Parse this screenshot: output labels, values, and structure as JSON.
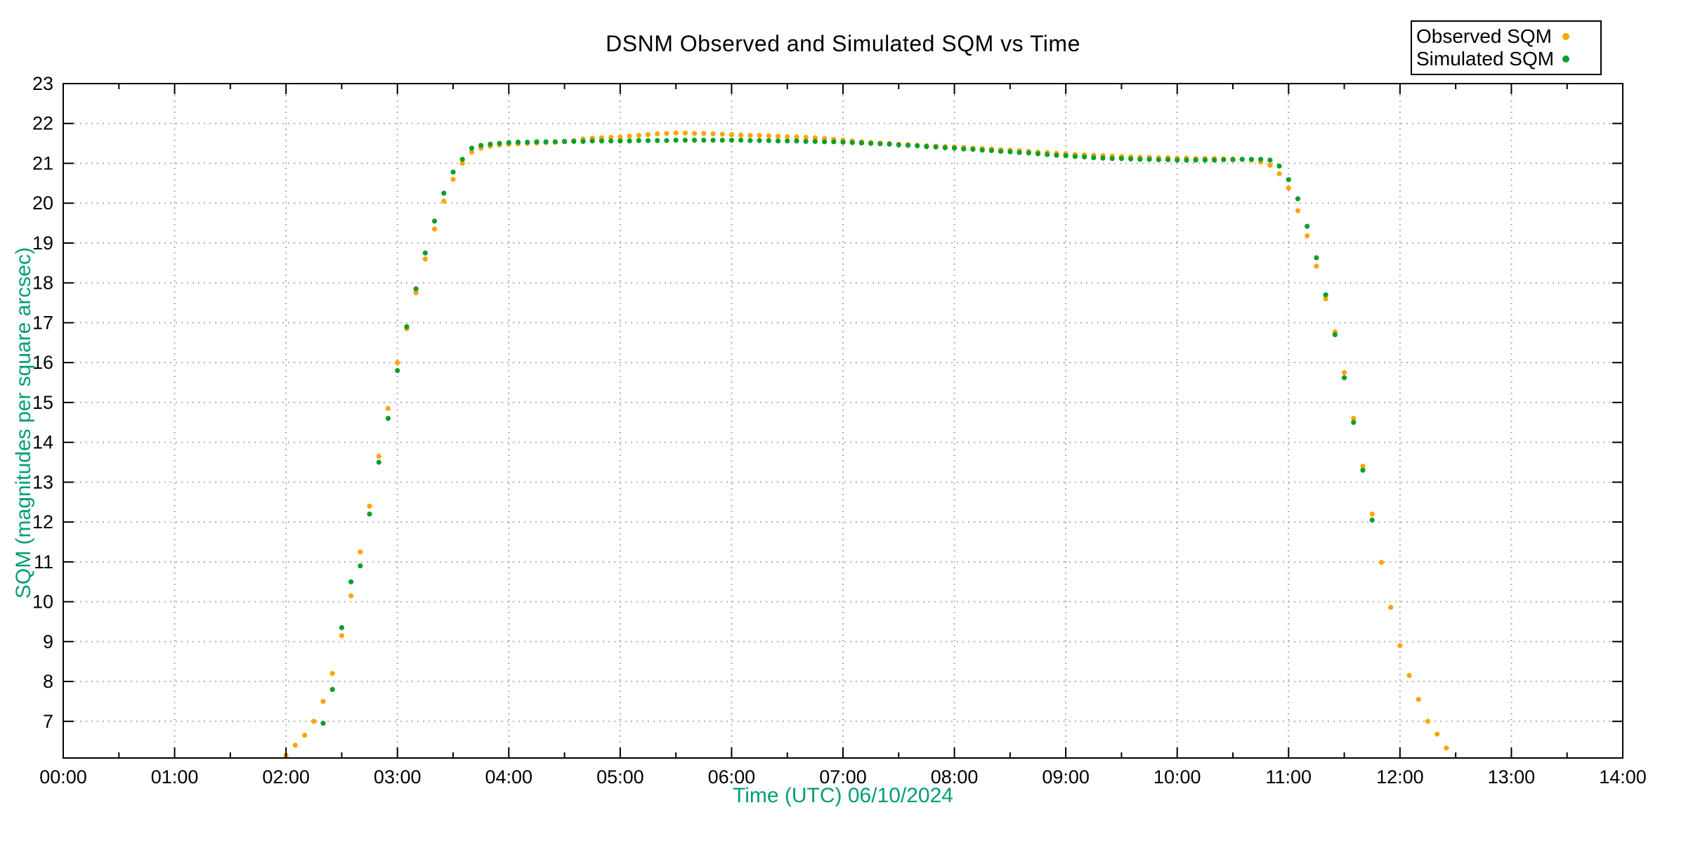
{
  "title": "DSNM Observed and Simulated SQM vs Time",
  "legend": {
    "position": "top-right",
    "items": [
      {
        "label": "Observed SQM",
        "color": "#ffa500"
      },
      {
        "label": "Simulated SQM",
        "color": "#0ba029"
      }
    ]
  },
  "axes": {
    "x_title": "Time (UTC)   06/10/2024",
    "y_title": "SQM (magnitudes per square arcsec)",
    "label_color": "#009e73",
    "grid_color": "#b0b0b0",
    "axis_color": "#000000"
  },
  "chart_data": {
    "type": "scatter",
    "title": "DSNM Observed and Simulated SQM vs Time",
    "xlabel": "Time (UTC)   06/10/2024",
    "ylabel": "SQM (magnitudes per square arcsec)",
    "grid": true,
    "legend_position": "top-right",
    "x_range_hours": [
      0,
      14
    ],
    "ylim": [
      6.08,
      23
    ],
    "x_tick_step_hours": 1,
    "x_minor_tick_step_hours": 0.5,
    "x_tick_labels": [
      "00:00",
      "01:00",
      "02:00",
      "03:00",
      "04:00",
      "05:00",
      "06:00",
      "07:00",
      "08:00",
      "09:00",
      "10:00",
      "11:00",
      "12:00",
      "13:00",
      "14:00"
    ],
    "y_ticks": [
      7,
      8,
      9,
      10,
      11,
      12,
      13,
      14,
      15,
      16,
      17,
      18,
      19,
      20,
      21,
      22,
      23
    ],
    "series": [
      {
        "name": "Observed SQM",
        "color": "#ffa500",
        "points": [
          [
            "02:00",
            6.15
          ],
          [
            "02:05",
            6.4
          ],
          [
            "02:10",
            6.65
          ],
          [
            "02:15",
            7.0
          ],
          [
            "02:20",
            7.5
          ],
          [
            "02:25",
            8.2
          ],
          [
            "02:30",
            9.15
          ],
          [
            "02:35",
            10.15
          ],
          [
            "02:40",
            11.25
          ],
          [
            "02:45",
            12.4
          ],
          [
            "02:50",
            13.65
          ],
          [
            "02:55",
            14.85
          ],
          [
            "03:00",
            16.0
          ],
          [
            "03:05",
            16.85
          ],
          [
            "03:10",
            17.75
          ],
          [
            "03:15",
            18.6
          ],
          [
            "03:20",
            19.35
          ],
          [
            "03:25",
            20.05
          ],
          [
            "03:30",
            20.6
          ],
          [
            "03:35",
            21.0
          ],
          [
            "03:40",
            21.28
          ],
          [
            "03:45",
            21.38
          ],
          [
            "03:50",
            21.43
          ],
          [
            "03:55",
            21.46
          ],
          [
            "04:00",
            21.48
          ],
          [
            "04:05",
            21.49
          ],
          [
            "04:10",
            21.5
          ],
          [
            "04:15",
            21.51
          ],
          [
            "04:20",
            21.52
          ],
          [
            "04:25",
            21.53
          ],
          [
            "04:30",
            21.54
          ],
          [
            "04:35",
            21.57
          ],
          [
            "04:40",
            21.61
          ],
          [
            "04:45",
            21.63
          ],
          [
            "04:50",
            21.64
          ],
          [
            "04:55",
            21.65
          ],
          [
            "05:00",
            21.66
          ],
          [
            "05:05",
            21.68
          ],
          [
            "05:10",
            21.7
          ],
          [
            "05:15",
            21.72
          ],
          [
            "05:20",
            21.74
          ],
          [
            "05:25",
            21.75
          ],
          [
            "05:30",
            21.76
          ],
          [
            "05:35",
            21.76
          ],
          [
            "05:40",
            21.75
          ],
          [
            "05:45",
            21.75
          ],
          [
            "05:50",
            21.74
          ],
          [
            "05:55",
            21.73
          ],
          [
            "06:00",
            21.72
          ],
          [
            "06:05",
            21.71
          ],
          [
            "06:10",
            21.7
          ],
          [
            "06:15",
            21.7
          ],
          [
            "06:20",
            21.69
          ],
          [
            "06:25",
            21.68
          ],
          [
            "06:30",
            21.67
          ],
          [
            "06:35",
            21.66
          ],
          [
            "06:40",
            21.65
          ],
          [
            "06:45",
            21.64
          ],
          [
            "06:50",
            21.62
          ],
          [
            "06:55",
            21.6
          ],
          [
            "07:00",
            21.58
          ],
          [
            "07:05",
            21.56
          ],
          [
            "07:10",
            21.54
          ],
          [
            "07:15",
            21.52
          ],
          [
            "07:20",
            21.51
          ],
          [
            "07:25",
            21.5
          ],
          [
            "07:30",
            21.48
          ],
          [
            "07:35",
            21.47
          ],
          [
            "07:40",
            21.45
          ],
          [
            "07:45",
            21.44
          ],
          [
            "07:50",
            21.43
          ],
          [
            "07:55",
            21.42
          ],
          [
            "08:00",
            21.41
          ],
          [
            "08:05",
            21.4
          ],
          [
            "08:10",
            21.38
          ],
          [
            "08:15",
            21.37
          ],
          [
            "08:20",
            21.36
          ],
          [
            "08:25",
            21.34
          ],
          [
            "08:30",
            21.33
          ],
          [
            "08:35",
            21.32
          ],
          [
            "08:40",
            21.3
          ],
          [
            "08:45",
            21.28
          ],
          [
            "08:50",
            21.27
          ],
          [
            "08:55",
            21.25
          ],
          [
            "09:00",
            21.24
          ],
          [
            "09:05",
            21.22
          ],
          [
            "09:10",
            21.21
          ],
          [
            "09:15",
            21.2
          ],
          [
            "09:20",
            21.19
          ],
          [
            "09:25",
            21.18
          ],
          [
            "09:30",
            21.17
          ],
          [
            "09:35",
            21.16
          ],
          [
            "09:40",
            21.15
          ],
          [
            "09:45",
            21.15
          ],
          [
            "09:50",
            21.14
          ],
          [
            "09:55",
            21.14
          ],
          [
            "10:00",
            21.13
          ],
          [
            "10:05",
            21.13
          ],
          [
            "10:10",
            21.12
          ],
          [
            "10:15",
            21.12
          ],
          [
            "10:20",
            21.12
          ],
          [
            "10:25",
            21.11
          ],
          [
            "10:30",
            21.11
          ],
          [
            "10:35",
            21.1
          ],
          [
            "10:40",
            21.08
          ],
          [
            "10:45",
            21.03
          ],
          [
            "10:50",
            20.95
          ],
          [
            "10:55",
            20.74
          ],
          [
            "11:00",
            20.38
          ],
          [
            "11:05",
            19.81
          ],
          [
            "11:10",
            19.18
          ],
          [
            "11:15",
            18.42
          ],
          [
            "11:20",
            17.6
          ],
          [
            "11:25",
            16.77
          ],
          [
            "11:30",
            15.75
          ],
          [
            "11:35",
            14.6
          ],
          [
            "11:40",
            13.4
          ],
          [
            "11:45",
            12.2
          ],
          [
            "11:50",
            10.99
          ],
          [
            "11:55",
            9.86
          ],
          [
            "12:00",
            8.9
          ],
          [
            "12:05",
            8.15
          ],
          [
            "12:10",
            7.55
          ],
          [
            "12:15",
            7.0
          ],
          [
            "12:20",
            6.68
          ],
          [
            "12:25",
            6.33
          ]
        ]
      },
      {
        "name": "Simulated SQM",
        "color": "#0ba029",
        "points": [
          [
            "02:20",
            6.95
          ],
          [
            "02:25",
            7.8
          ],
          [
            "02:30",
            9.35
          ],
          [
            "02:35",
            10.5
          ],
          [
            "02:40",
            10.9
          ],
          [
            "02:45",
            12.2
          ],
          [
            "02:50",
            13.5
          ],
          [
            "02:55",
            14.6
          ],
          [
            "03:00",
            15.8
          ],
          [
            "03:05",
            16.9
          ],
          [
            "03:10",
            17.85
          ],
          [
            "03:15",
            18.75
          ],
          [
            "03:20",
            19.55
          ],
          [
            "03:25",
            20.25
          ],
          [
            "03:30",
            20.78
          ],
          [
            "03:35",
            21.1
          ],
          [
            "03:40",
            21.38
          ],
          [
            "03:45",
            21.45
          ],
          [
            "03:50",
            21.48
          ],
          [
            "03:55",
            21.5
          ],
          [
            "04:00",
            21.52
          ],
          [
            "04:05",
            21.53
          ],
          [
            "04:10",
            21.53
          ],
          [
            "04:15",
            21.54
          ],
          [
            "04:20",
            21.54
          ],
          [
            "04:25",
            21.54
          ],
          [
            "04:30",
            21.55
          ],
          [
            "04:35",
            21.55
          ],
          [
            "04:40",
            21.55
          ],
          [
            "04:45",
            21.56
          ],
          [
            "04:50",
            21.56
          ],
          [
            "04:55",
            21.56
          ],
          [
            "05:00",
            21.56
          ],
          [
            "05:05",
            21.56
          ],
          [
            "05:10",
            21.57
          ],
          [
            "05:15",
            21.57
          ],
          [
            "05:20",
            21.57
          ],
          [
            "05:25",
            21.57
          ],
          [
            "05:30",
            21.58
          ],
          [
            "05:35",
            21.58
          ],
          [
            "05:40",
            21.58
          ],
          [
            "05:45",
            21.58
          ],
          [
            "05:50",
            21.58
          ],
          [
            "05:55",
            21.58
          ],
          [
            "06:00",
            21.58
          ],
          [
            "06:05",
            21.58
          ],
          [
            "06:10",
            21.57
          ],
          [
            "06:15",
            21.57
          ],
          [
            "06:20",
            21.57
          ],
          [
            "06:25",
            21.56
          ],
          [
            "06:30",
            21.56
          ],
          [
            "06:35",
            21.56
          ],
          [
            "06:40",
            21.55
          ],
          [
            "06:45",
            21.55
          ],
          [
            "06:50",
            21.54
          ],
          [
            "06:55",
            21.54
          ],
          [
            "07:00",
            21.53
          ],
          [
            "07:05",
            21.52
          ],
          [
            "07:10",
            21.51
          ],
          [
            "07:15",
            21.5
          ],
          [
            "07:20",
            21.49
          ],
          [
            "07:25",
            21.48
          ],
          [
            "07:30",
            21.46
          ],
          [
            "07:35",
            21.45
          ],
          [
            "07:40",
            21.44
          ],
          [
            "07:45",
            21.42
          ],
          [
            "07:50",
            21.41
          ],
          [
            "07:55",
            21.39
          ],
          [
            "08:00",
            21.38
          ],
          [
            "08:05",
            21.36
          ],
          [
            "08:10",
            21.35
          ],
          [
            "08:15",
            21.33
          ],
          [
            "08:20",
            21.32
          ],
          [
            "08:25",
            21.3
          ],
          [
            "08:30",
            21.29
          ],
          [
            "08:35",
            21.27
          ],
          [
            "08:40",
            21.26
          ],
          [
            "08:45",
            21.24
          ],
          [
            "08:50",
            21.22
          ],
          [
            "08:55",
            21.2
          ],
          [
            "09:00",
            21.19
          ],
          [
            "09:05",
            21.17
          ],
          [
            "09:10",
            21.16
          ],
          [
            "09:15",
            21.14
          ],
          [
            "09:20",
            21.13
          ],
          [
            "09:25",
            21.12
          ],
          [
            "09:30",
            21.12
          ],
          [
            "09:35",
            21.11
          ],
          [
            "09:40",
            21.1
          ],
          [
            "09:45",
            21.1
          ],
          [
            "09:50",
            21.09
          ],
          [
            "09:55",
            21.09
          ],
          [
            "10:00",
            21.08
          ],
          [
            "10:05",
            21.08
          ],
          [
            "10:10",
            21.08
          ],
          [
            "10:15",
            21.08
          ],
          [
            "10:20",
            21.08
          ],
          [
            "10:25",
            21.09
          ],
          [
            "10:30",
            21.09
          ],
          [
            "10:35",
            21.1
          ],
          [
            "10:40",
            21.1
          ],
          [
            "10:45",
            21.1
          ],
          [
            "10:50",
            21.08
          ],
          [
            "10:55",
            20.93
          ],
          [
            "11:00",
            20.59
          ],
          [
            "11:05",
            20.11
          ],
          [
            "11:10",
            19.42
          ],
          [
            "11:15",
            18.63
          ],
          [
            "11:20",
            17.7
          ],
          [
            "11:25",
            16.7
          ],
          [
            "11:30",
            15.62
          ],
          [
            "11:35",
            14.5
          ],
          [
            "11:40",
            13.3
          ],
          [
            "11:45",
            12.05
          ]
        ]
      }
    ]
  }
}
